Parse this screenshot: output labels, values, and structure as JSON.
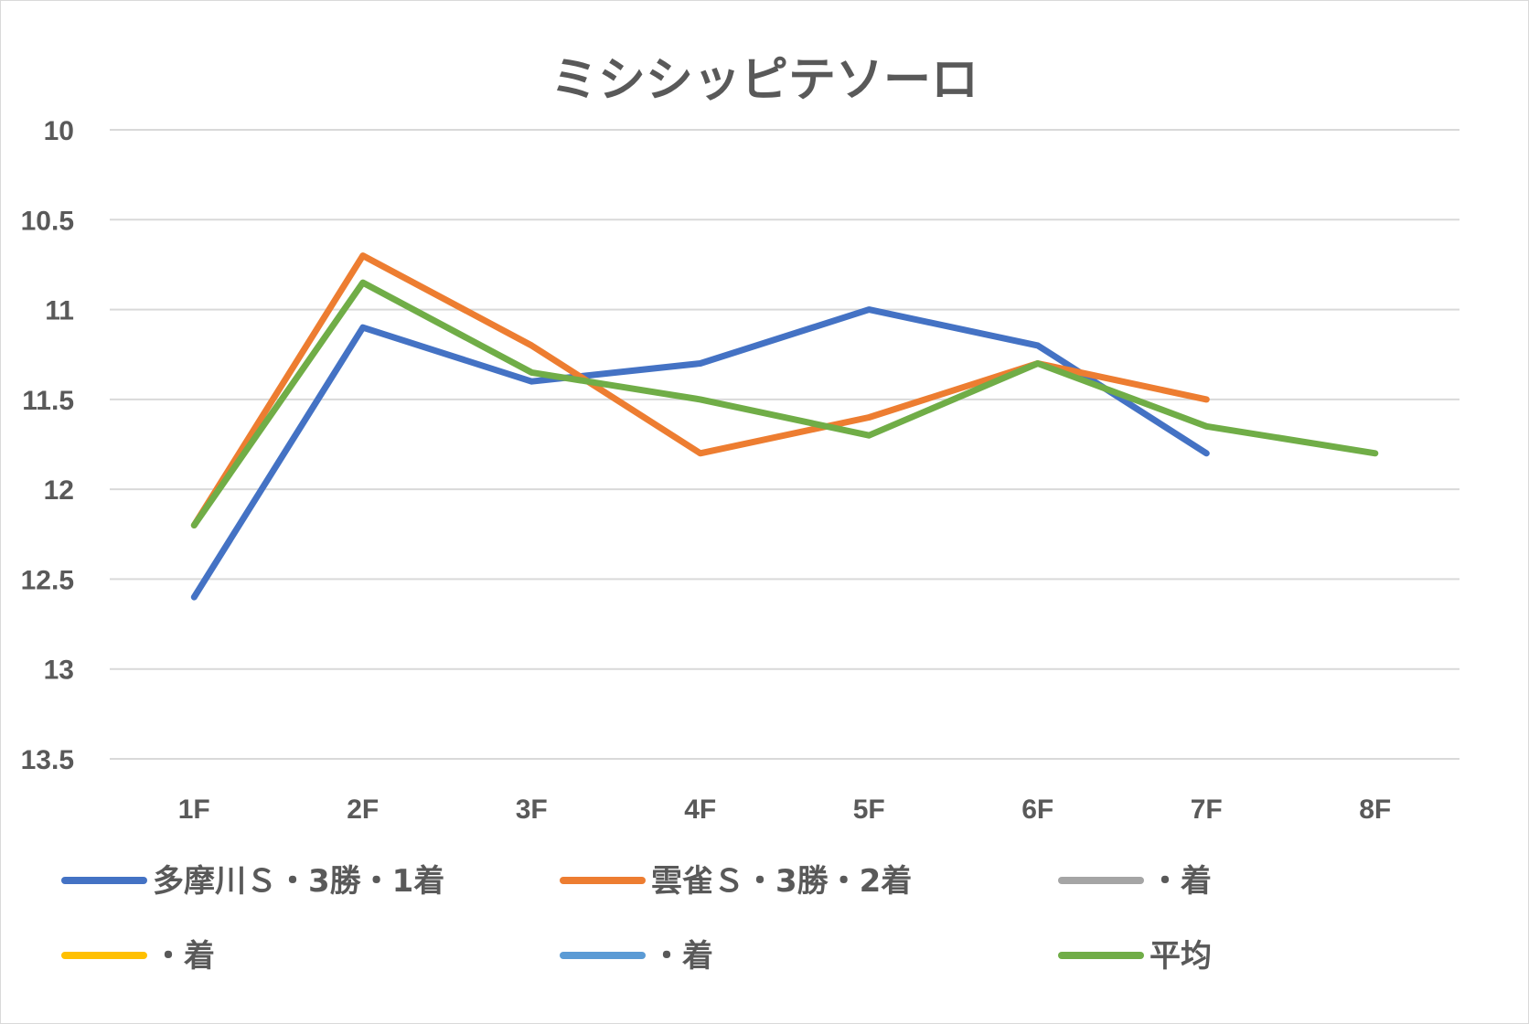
{
  "chart_data": {
    "type": "line",
    "title": "ミシシッピテソーロ",
    "xlabel": "",
    "ylabel": "",
    "categories": [
      "1F",
      "2F",
      "3F",
      "4F",
      "5F",
      "6F",
      "7F",
      "8F"
    ],
    "y_ticks": [
      "10",
      "10.5",
      "11",
      "11.5",
      "12",
      "12.5",
      "13",
      "13.5"
    ],
    "ylim": [
      10,
      13.5
    ],
    "y_inverted": true,
    "grid": true,
    "legend_position": "bottom",
    "series": [
      {
        "name": "多摩川Ｓ・3勝・1着",
        "color": "#4472c4",
        "values": [
          12.6,
          11.1,
          11.4,
          11.3,
          11.0,
          11.2,
          11.8,
          null
        ]
      },
      {
        "name": "雲雀Ｓ・3勝・2着",
        "color": "#ed7d31",
        "values": [
          12.2,
          10.7,
          11.2,
          11.8,
          11.6,
          11.3,
          11.5,
          null
        ]
      },
      {
        "name": "・着",
        "color": "#a5a5a5",
        "values": [
          null,
          null,
          null,
          null,
          null,
          null,
          null,
          null
        ]
      },
      {
        "name": "・着",
        "color": "#ffc000",
        "values": [
          null,
          null,
          null,
          null,
          null,
          null,
          null,
          null
        ]
      },
      {
        "name": "・着",
        "color": "#5b9bd5",
        "values": [
          null,
          null,
          null,
          null,
          null,
          null,
          null,
          null
        ]
      },
      {
        "name": "平均",
        "color": "#70ad47",
        "values": [
          12.2,
          10.85,
          11.35,
          11.5,
          11.7,
          11.3,
          11.65,
          11.8
        ]
      }
    ]
  }
}
